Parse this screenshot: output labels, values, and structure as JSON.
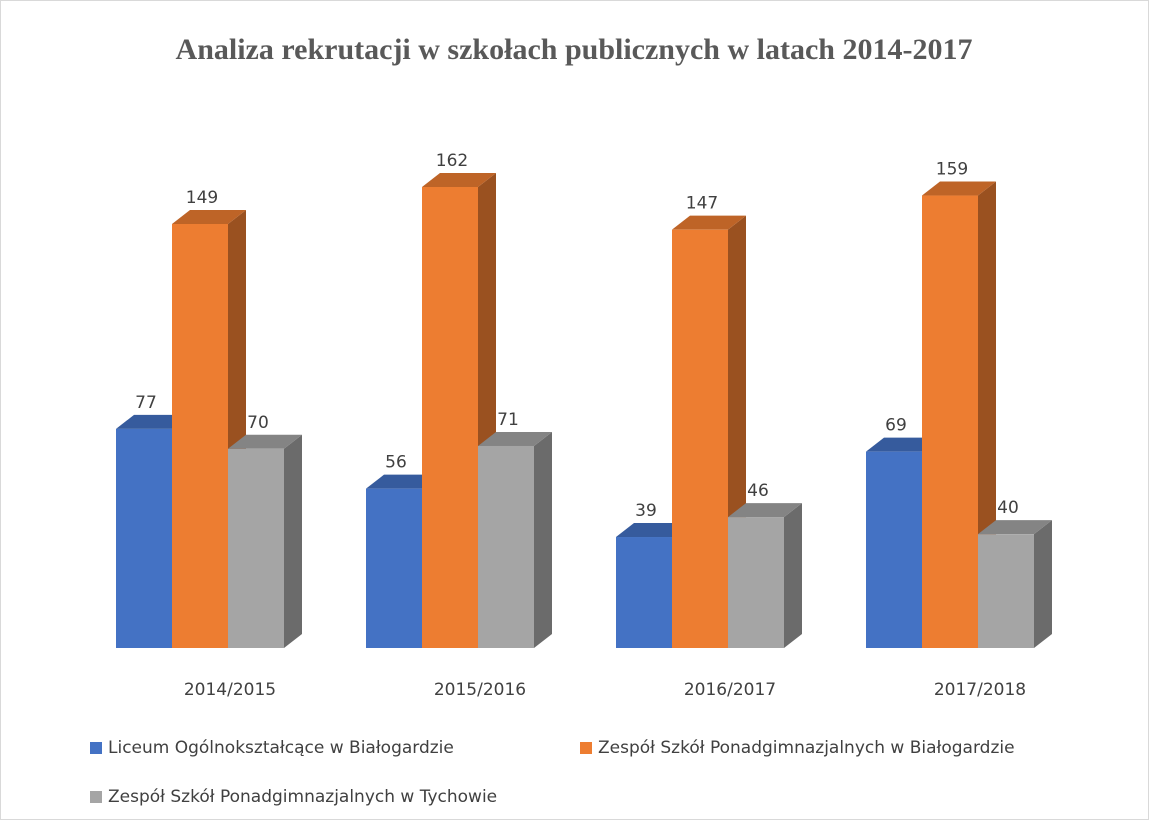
{
  "chart_data": {
    "type": "bar3d",
    "title": "Analiza rekrutacji w szkołach publicznych w latach 2014-2017",
    "categories": [
      "2014/2015",
      "2015/2016",
      "2016/2017",
      "2017/2018"
    ],
    "series": [
      {
        "name": "Liceum Ogólnokształcące w Białogardzie",
        "color": "#4472c4",
        "values": [
          77,
          56,
          39,
          69
        ]
      },
      {
        "name": "Zespół Szkół Ponadgimnazjalnych w Białogardzie",
        "color": "#ed7d31",
        "values": [
          149,
          162,
          147,
          159
        ]
      },
      {
        "name": "Zespół Szkół Ponadgimnazjalnych w Tychowie",
        "color": "#a5a5a5",
        "values": [
          70,
          71,
          46,
          40
        ]
      }
    ]
  }
}
